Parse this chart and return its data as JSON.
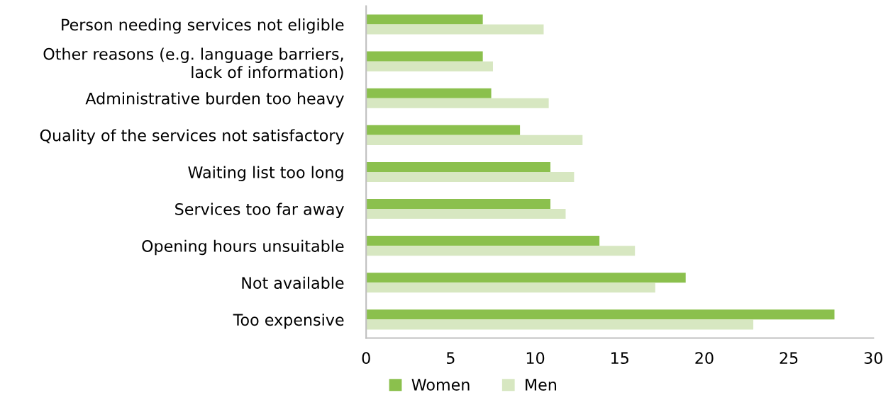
{
  "chart_data": {
    "type": "bar",
    "orientation": "horizontal",
    "categories": [
      "Person needing services not eligible",
      "Other reasons (e.g. language barriers,\nlack of information)",
      "Administrative burden too heavy",
      "Quality of the services not satisfactory",
      "Waiting list too long",
      "Services too far away",
      "Opening hours unsuitable",
      "Not available",
      "Too expensive"
    ],
    "series": [
      {
        "name": "Women",
        "color": "#8bc04d",
        "values": [
          6.9,
          6.9,
          7.4,
          9.1,
          10.9,
          10.9,
          13.8,
          18.9,
          27.7
        ]
      },
      {
        "name": "Men",
        "color": "#d7e7c1",
        "values": [
          10.5,
          7.5,
          10.8,
          12.8,
          12.3,
          11.8,
          15.9,
          17.1,
          22.9
        ]
      }
    ],
    "xlim": [
      0,
      30
    ],
    "xticks": [
      0,
      5,
      10,
      15,
      20,
      25,
      30
    ],
    "grid": false,
    "legend": "bottom"
  }
}
